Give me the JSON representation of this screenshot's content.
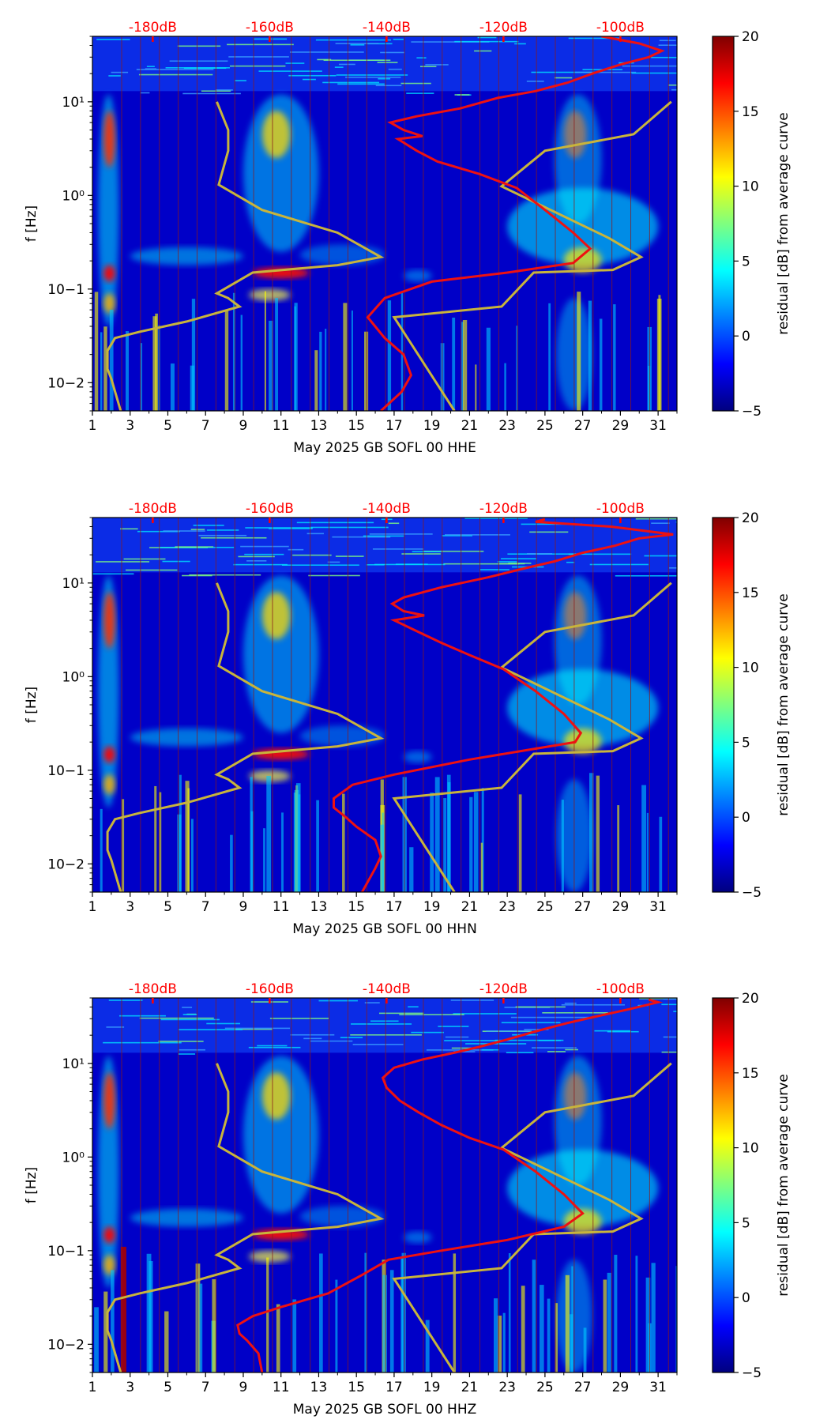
{
  "figure": {
    "colormap": [
      "#00007f",
      "#0000ff",
      "#007fff",
      "#00ffff",
      "#7fff7f",
      "#ffff00",
      "#ff7f00",
      "#ff0000",
      "#7f0000"
    ],
    "colors": {
      "noise_curve": "#ee1111",
      "model_curve": "#c8b43c",
      "db_labels": "#ff0000",
      "day_lines": "#8b1a1a"
    }
  },
  "chart_data": [
    {
      "type": "heatmap",
      "title": "May 2025 GB SOFL 00 HHE",
      "xlabel": "May 2025 GB SOFL 00 HHE",
      "ylabel": "f [Hz]",
      "x_ticks": [
        "1",
        "3",
        "5",
        "7",
        "9",
        "11",
        "13",
        "15",
        "17",
        "19",
        "21",
        "23",
        "25",
        "27",
        "29",
        "31"
      ],
      "xlim": [
        1,
        32
      ],
      "ylim": [
        0.005,
        50
      ],
      "y_ticks": [
        "10−2",
        "10−1",
        "10⁰",
        "10¹"
      ],
      "db_ticks": [
        "-180dB",
        "-160dB",
        "-140dB",
        "-120dB",
        "-100dB"
      ],
      "colorbar": {
        "label": "residual [dB] from average curve",
        "ticks": [
          "20",
          "15",
          "10",
          "5",
          "0",
          "−5"
        ],
        "range": [
          -5,
          20
        ]
      },
      "series": [
        {
          "name": "noise curve (red)",
          "points": [
            [
              16.3,
              0.005
            ],
            [
              17.4,
              0.008
            ],
            [
              17.9,
              0.012
            ],
            [
              17.5,
              0.02
            ],
            [
              16.5,
              0.03
            ],
            [
              15.6,
              0.05
            ],
            [
              16.5,
              0.08
            ],
            [
              19,
              0.12
            ],
            [
              23,
              0.15
            ],
            [
              26.5,
              0.19
            ],
            [
              27.4,
              0.27
            ],
            [
              26.5,
              0.4
            ],
            [
              25,
              0.7
            ],
            [
              23.5,
              1.2
            ],
            [
              21.5,
              1.7
            ],
            [
              19.3,
              2.3
            ],
            [
              18.2,
              3.0
            ],
            [
              17.2,
              4.0
            ],
            [
              18.5,
              4.3
            ],
            [
              17.5,
              5
            ],
            [
              16.8,
              6
            ],
            [
              18.2,
              7
            ],
            [
              20.5,
              8.5
            ],
            [
              22.5,
              11
            ],
            [
              24.5,
              13
            ],
            [
              26.2,
              16
            ],
            [
              27.5,
              20
            ],
            [
              29,
              25
            ],
            [
              30.5,
              30
            ],
            [
              31.2,
              35
            ],
            [
              30,
              42
            ],
            [
              28,
              50
            ]
          ]
        },
        {
          "name": "model curve (yellow)",
          "points": [
            [
              2.5,
              0.005
            ],
            [
              2,
              0.011
            ],
            [
              1.8,
              0.014
            ],
            [
              1.8,
              0.022
            ],
            [
              2.2,
              0.03
            ],
            [
              3.5,
              0.035
            ],
            [
              6,
              0.045
            ],
            [
              8.8,
              0.065
            ],
            [
              8.2,
              0.08
            ],
            [
              7.6,
              0.09
            ],
            [
              9.5,
              0.15
            ],
            [
              14,
              0.18
            ],
            [
              16.3,
              0.22
            ],
            [
              16.3,
              0.22
            ],
            [
              14,
              0.4
            ],
            [
              10,
              0.7
            ],
            [
              7.7,
              1.3
            ],
            [
              8.2,
              3.0
            ],
            [
              8.2,
              5.0
            ],
            [
              7.6,
              10
            ]
          ],
          "second": [
            [
              20.2,
              0.005
            ],
            [
              17,
              0.05
            ],
            [
              22.7,
              0.065
            ],
            [
              24.4,
              0.15
            ],
            [
              28.6,
              0.16
            ],
            [
              30.1,
              0.22
            ],
            [
              28.4,
              0.35
            ],
            [
              22.7,
              1.25
            ],
            [
              25,
              3
            ],
            [
              29.7,
              4.5
            ],
            [
              31.7,
              10
            ]
          ]
        }
      ]
    },
    {
      "type": "heatmap",
      "title": "May 2025 GB SOFL 00 HHN",
      "xlabel": "May 2025 GB SOFL 00 HHN",
      "ylabel": "f [Hz]",
      "x_ticks": [
        "1",
        "3",
        "5",
        "7",
        "9",
        "11",
        "13",
        "15",
        "17",
        "19",
        "21",
        "23",
        "25",
        "27",
        "29",
        "31"
      ],
      "xlim": [
        1,
        32
      ],
      "ylim": [
        0.005,
        50
      ],
      "y_ticks": [
        "10−2",
        "10−1",
        "10⁰",
        "10¹"
      ],
      "db_ticks": [
        "-180dB",
        "-160dB",
        "-140dB",
        "-120dB",
        "-100dB"
      ],
      "colorbar": {
        "label": "residual [dB] from average curve",
        "ticks": [
          "20",
          "15",
          "10",
          "5",
          "0",
          "−5"
        ],
        "range": [
          -5,
          20
        ]
      },
      "series": [
        {
          "name": "noise curve (red)",
          "points": [
            [
              15.3,
              0.005
            ],
            [
              16,
              0.009
            ],
            [
              16.3,
              0.012
            ],
            [
              16,
              0.018
            ],
            [
              15,
              0.025
            ],
            [
              14.4,
              0.032
            ],
            [
              13.8,
              0.04
            ],
            [
              13.8,
              0.05
            ],
            [
              14.8,
              0.07
            ],
            [
              17,
              0.09
            ],
            [
              21,
              0.13
            ],
            [
              24.5,
              0.17
            ],
            [
              26.6,
              0.2
            ],
            [
              26.9,
              0.25
            ],
            [
              26,
              0.4
            ],
            [
              24.5,
              0.7
            ],
            [
              22.8,
              1.2
            ],
            [
              21,
              1.7
            ],
            [
              19.5,
              2.3
            ],
            [
              18,
              3.2
            ],
            [
              17,
              4.0
            ],
            [
              18.6,
              4.5
            ],
            [
              17.5,
              5
            ],
            [
              16.9,
              6
            ],
            [
              17.5,
              7
            ],
            [
              19.5,
              9
            ],
            [
              22,
              11.5
            ],
            [
              23.7,
              14
            ],
            [
              25.5,
              17
            ],
            [
              27,
              21
            ],
            [
              28.7,
              25
            ],
            [
              30,
              30
            ],
            [
              31.8,
              33
            ],
            [
              28.5,
              40
            ],
            [
              24.5,
              45
            ],
            [
              25,
              48
            ]
          ]
        },
        {
          "name": "model curve (yellow)",
          "points": [
            [
              2.5,
              0.005
            ],
            [
              2,
              0.011
            ],
            [
              1.8,
              0.014
            ],
            [
              1.8,
              0.022
            ],
            [
              2.2,
              0.03
            ],
            [
              3.5,
              0.035
            ],
            [
              6,
              0.045
            ],
            [
              8.8,
              0.065
            ],
            [
              8.2,
              0.08
            ],
            [
              7.6,
              0.09
            ],
            [
              9.5,
              0.15
            ],
            [
              14,
              0.18
            ],
            [
              16.3,
              0.22
            ],
            [
              16.3,
              0.22
            ],
            [
              14,
              0.4
            ],
            [
              10,
              0.7
            ],
            [
              7.7,
              1.3
            ],
            [
              8.2,
              3.0
            ],
            [
              8.2,
              5.0
            ],
            [
              7.6,
              10
            ]
          ],
          "second": [
            [
              20.2,
              0.005
            ],
            [
              17,
              0.05
            ],
            [
              22.7,
              0.065
            ],
            [
              24.4,
              0.15
            ],
            [
              28.6,
              0.16
            ],
            [
              30.1,
              0.22
            ],
            [
              28.4,
              0.35
            ],
            [
              22.7,
              1.25
            ],
            [
              25,
              3
            ],
            [
              29.7,
              4.5
            ],
            [
              31.7,
              10
            ]
          ]
        }
      ]
    },
    {
      "type": "heatmap",
      "title": "May 2025 GB SOFL 00 HHZ",
      "xlabel": "May 2025 GB SOFL 00 HHZ",
      "ylabel": "f [Hz]",
      "x_ticks": [
        "1",
        "3",
        "5",
        "7",
        "9",
        "11",
        "13",
        "15",
        "17",
        "19",
        "21",
        "23",
        "25",
        "27",
        "29",
        "31"
      ],
      "xlim": [
        1,
        32
      ],
      "ylim": [
        0.005,
        50
      ],
      "y_ticks": [
        "10−2",
        "10−1",
        "10⁰",
        "10¹"
      ],
      "db_ticks": [
        "-180dB",
        "-160dB",
        "-140dB",
        "-120dB",
        "-100dB"
      ],
      "colorbar": {
        "label": "residual [dB] from average curve",
        "ticks": [
          "20",
          "15",
          "10",
          "5",
          "0",
          "−5"
        ],
        "range": [
          -5,
          20
        ]
      },
      "series": [
        {
          "name": "noise curve (red)",
          "points": [
            [
              10,
              0.005
            ],
            [
              9.8,
              0.008
            ],
            [
              9.2,
              0.011
            ],
            [
              8.8,
              0.013
            ],
            [
              8.7,
              0.016
            ],
            [
              9.5,
              0.02
            ],
            [
              11,
              0.025
            ],
            [
              13.5,
              0.035
            ],
            [
              15.3,
              0.055
            ],
            [
              16.7,
              0.08
            ],
            [
              19.5,
              0.1
            ],
            [
              23,
              0.13
            ],
            [
              26,
              0.18
            ],
            [
              27,
              0.25
            ],
            [
              26,
              0.4
            ],
            [
              24.5,
              0.7
            ],
            [
              22.8,
              1.2
            ],
            [
              21,
              1.6
            ],
            [
              19.5,
              2.2
            ],
            [
              18.3,
              3
            ],
            [
              17.3,
              4
            ],
            [
              16.6,
              5.5
            ],
            [
              16.4,
              7
            ],
            [
              17,
              9
            ],
            [
              18.5,
              11
            ],
            [
              20.2,
              13
            ],
            [
              21.5,
              15
            ],
            [
              23,
              18
            ],
            [
              24.5,
              22
            ],
            [
              26.2,
              27
            ],
            [
              27.8,
              32
            ],
            [
              29.5,
              38
            ],
            [
              31,
              45
            ],
            [
              30.5,
              48
            ]
          ]
        },
        {
          "name": "model curve (yellow)",
          "points": [
            [
              2.5,
              0.005
            ],
            [
              2,
              0.011
            ],
            [
              1.8,
              0.014
            ],
            [
              1.8,
              0.022
            ],
            [
              2.2,
              0.03
            ],
            [
              3.5,
              0.035
            ],
            [
              6,
              0.045
            ],
            [
              8.8,
              0.065
            ],
            [
              8.2,
              0.08
            ],
            [
              7.6,
              0.09
            ],
            [
              9.5,
              0.15
            ],
            [
              14,
              0.18
            ],
            [
              16.3,
              0.22
            ],
            [
              16.3,
              0.22
            ],
            [
              14,
              0.4
            ],
            [
              10,
              0.7
            ],
            [
              7.7,
              1.3
            ],
            [
              8.2,
              3.0
            ],
            [
              8.2,
              5.0
            ],
            [
              7.6,
              10
            ]
          ],
          "second": [
            [
              20.2,
              0.005
            ],
            [
              17,
              0.05
            ],
            [
              22.7,
              0.065
            ],
            [
              24.4,
              0.15
            ],
            [
              28.6,
              0.16
            ],
            [
              30.1,
              0.22
            ],
            [
              28.4,
              0.35
            ],
            [
              22.7,
              1.25
            ],
            [
              25,
              3
            ],
            [
              29.7,
              4.5
            ],
            [
              31.7,
              10
            ]
          ]
        }
      ]
    }
  ]
}
